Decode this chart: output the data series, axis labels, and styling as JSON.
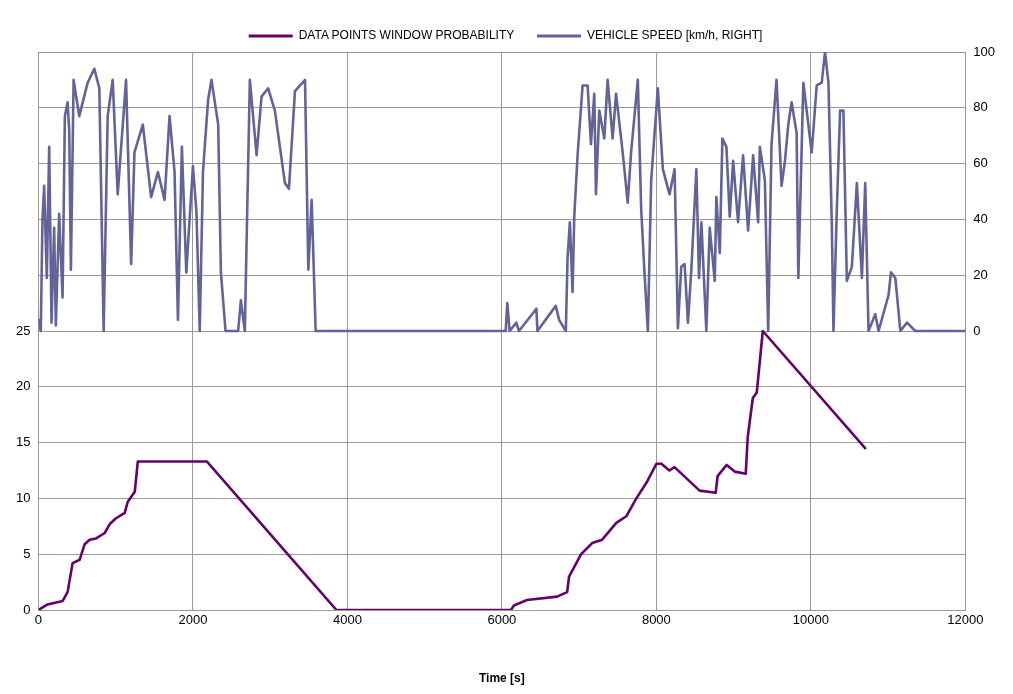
{
  "chart_data": {
    "type": "line",
    "xlabel": "Time [s]",
    "xlim": [
      0,
      12000
    ],
    "xticks": [
      0,
      2000,
      4000,
      6000,
      8000,
      10000,
      12000
    ],
    "ylim": [
      0,
      50
    ],
    "yticks": [
      0,
      5,
      10,
      15,
      20,
      25
    ],
    "y2lim": [
      -100,
      100
    ],
    "y2ticks": [
      0,
      20,
      40,
      60,
      80,
      100
    ],
    "grid": true,
    "legend": "top",
    "marker": "none",
    "line_style": "solid",
    "series": [
      {
        "name": "DATA POINTS WINDOW PROBABILITY",
        "color": "#66006a",
        "x": [
          0,
          117,
          312,
          377,
          442,
          533,
          598,
          663,
          741,
          858,
          923,
          1000,
          1117,
          1156,
          1247,
          1286,
          2182,
          3858,
          6117,
          6156,
          6325,
          6715,
          6845,
          6870,
          7026,
          7169,
          7299,
          7481,
          7611,
          7741,
          7871,
          8000,
          8065,
          8169,
          8234,
          8560,
          8768,
          8793,
          8910,
          9014,
          9157,
          9183,
          9249,
          9300,
          9378,
          10703
        ],
        "values": [
          0,
          0.5,
          0.8,
          1.6,
          4.2,
          4.5,
          5.9,
          6.3,
          6.4,
          6.9,
          7.7,
          8.2,
          8.7,
          9.7,
          10.6,
          13.3,
          13.3,
          0,
          0,
          0.4,
          0.9,
          1.2,
          1.6,
          3.0,
          5.0,
          6.0,
          6.3,
          7.8,
          8.4,
          10.0,
          11.4,
          13.1,
          13.1,
          12.5,
          12.8,
          10.7,
          10.5,
          12.0,
          13.0,
          12.4,
          12.2,
          15.5,
          19.0,
          19.5,
          25,
          14.5
        ]
      },
      {
        "name": "VEHICLE SPEED [km/h, RIGHT]",
        "color": "#636399",
        "axis": "y2",
        "x": [
          0,
          30,
          52,
          74,
          108,
          139,
          169,
          203,
          225,
          268,
          312,
          342,
          377,
          398,
          420,
          455,
          528,
          637,
          723,
          788,
          844,
          896,
          961,
          1026,
          1134,
          1200,
          1243,
          1351,
          1459,
          1546,
          1633,
          1697,
          1762,
          1806,
          1857,
          1914,
          2000,
          2045,
          2088,
          2130,
          2197,
          2240,
          2327,
          2362,
          2422,
          2585,
          2621,
          2672,
          2694,
          2737,
          2824,
          2888,
          2974,
          3061,
          3191,
          3243,
          3321,
          3451,
          3494,
          3537,
          3589,
          6049,
          6070,
          6100,
          6187,
          6221,
          6447,
          6460,
          6698,
          6741,
          6828,
          6850,
          6880,
          6915,
          6937,
          6980,
          7045,
          7110,
          7153,
          7196,
          7218,
          7261,
          7326,
          7369,
          7434,
          7478,
          7564,
          7629,
          7673,
          7760,
          7803,
          7846,
          7890,
          7933,
          8019,
          8084,
          8171,
          8236,
          8279,
          8322,
          8366,
          8409,
          8453,
          8518,
          8552,
          8583,
          8647,
          8691,
          8756,
          8777,
          8821,
          8855,
          8907,
          8950,
          8994,
          9058,
          9123,
          9188,
          9253,
          9318,
          9340,
          9405,
          9448,
          9491,
          9556,
          9621,
          9665,
          9708,
          9751,
          9816,
          9838,
          9903,
          10011,
          10076,
          10141,
          10184,
          10228,
          10271,
          10293,
          10336,
          10379,
          10422,
          10466,
          10531,
          10596,
          10661,
          10704,
          10747,
          10834,
          10877,
          11007,
          11037,
          11094,
          11159,
          11245,
          11353,
          12000
        ],
        "values": [
          4,
          0,
          40,
          52,
          19,
          66,
          3,
          37,
          2,
          42,
          12,
          77,
          82,
          72,
          22,
          90,
          77,
          89,
          94,
          87,
          0,
          77,
          90,
          49,
          90,
          24,
          64,
          74,
          48,
          57,
          47,
          77,
          57,
          4,
          66,
          21,
          59,
          43,
          0,
          57,
          83,
          90,
          74,
          21,
          0,
          0,
          11,
          0,
          31,
          90,
          63,
          84,
          87,
          79,
          53,
          51,
          86,
          90,
          22,
          47,
          0,
          0,
          10,
          0,
          3,
          0,
          8,
          0,
          9,
          4,
          0,
          26,
          39,
          14,
          41,
          63,
          88,
          88,
          67,
          85,
          49,
          79,
          69,
          90,
          69,
          85,
          64,
          46,
          64,
          90,
          44,
          21,
          0,
          54,
          87,
          58,
          49,
          58,
          1,
          23,
          24,
          3,
          22,
          58,
          19,
          39,
          0,
          37,
          18,
          48,
          28,
          69,
          66,
          41,
          61,
          39,
          63,
          36,
          63,
          39,
          66,
          54,
          0,
          67,
          90,
          52,
          61,
          74,
          82,
          71,
          19,
          89,
          64,
          88,
          89,
          100,
          89,
          39,
          0,
          43,
          79,
          79,
          18,
          23,
          53,
          19,
          53,
          0,
          6,
          0,
          13,
          21,
          19,
          0,
          3,
          0,
          0
        ]
      }
    ]
  }
}
